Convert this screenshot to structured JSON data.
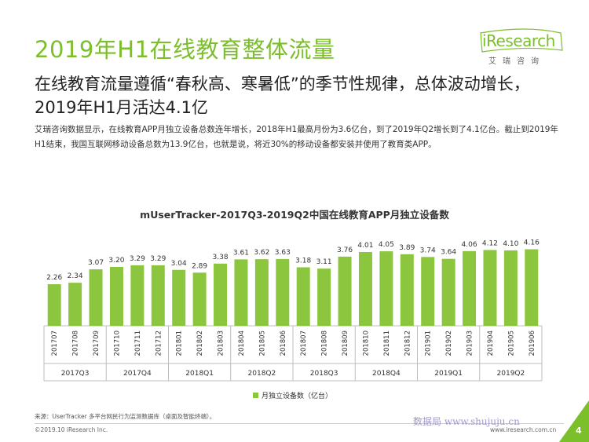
{
  "page": {
    "title": "2019年H1在线教育整体流量",
    "subtitle": "在线教育流量遵循“春秋高、寒暑低”的季节性规律，总体波动增长，2019年H1月活达4.1亿",
    "description": "艾瑞咨询数据显示，在线教育APP月独立设备总数连年增长，2018年H1最高月份为3.6亿台，到了2019年Q2增长到了4.1亿台。截止到2019年H1结束，我国互联网移动设备总数为13.9亿台，也就是说，将近30%的移动设备都安装并使用了教育类APP。",
    "source": "来源：UserTracker 多平台网民行为监测数据库（桌面及智能终端）。",
    "copyright": "©2019.10 iResearch Inc.",
    "website": "www.iresearch.com.cn",
    "page_number": "4",
    "watermark": "数据局 www.shujuju.cn"
  },
  "logo": {
    "name": "iResearch",
    "subtitle": "艾瑞咨询"
  },
  "colors": {
    "brand_green": "#7bbf2a",
    "bar_green": "#8cc63f"
  },
  "chart_data": {
    "type": "bar",
    "title": "mUserTracker-2017Q3-2019Q2中国在线教育APP月独立设备数",
    "categories": [
      "201707",
      "201708",
      "201709",
      "201710",
      "201711",
      "201712",
      "201801",
      "201802",
      "201803",
      "201804",
      "201805",
      "201806",
      "201807",
      "201808",
      "201809",
      "201810",
      "201811",
      "201812",
      "201901",
      "201902",
      "201903",
      "201904",
      "201905",
      "201906"
    ],
    "quarters": [
      {
        "label": "2017Q3",
        "months": 3
      },
      {
        "label": "2017Q4",
        "months": 3
      },
      {
        "label": "2018Q1",
        "months": 3
      },
      {
        "label": "2018Q2",
        "months": 3
      },
      {
        "label": "2018Q3",
        "months": 3
      },
      {
        "label": "2018Q4",
        "months": 3
      },
      {
        "label": "2019Q1",
        "months": 3
      },
      {
        "label": "2019Q2",
        "months": 3
      }
    ],
    "series": [
      {
        "name": "月独立设备数（亿台）",
        "values": [
          2.26,
          2.34,
          3.07,
          3.2,
          3.29,
          3.29,
          3.04,
          2.89,
          3.38,
          3.61,
          3.62,
          3.63,
          3.18,
          3.11,
          3.76,
          4.01,
          4.05,
          3.89,
          3.74,
          3.64,
          4.06,
          4.12,
          4.1,
          4.16
        ],
        "labels": [
          "2.26",
          "2.34",
          "3.07",
          "3.20",
          "3.29",
          "3.29",
          "3.04",
          "2.89",
          "3.38",
          "3.61",
          "3.62",
          "3.63",
          "3.18",
          "3.11",
          "3.76",
          "4.01",
          "4.05",
          "3.89",
          "3.74",
          "3.64",
          "4.06",
          "4.12",
          "4.10",
          "4.16"
        ]
      }
    ],
    "legend": "bottom-center",
    "ylim": [
      0,
      4.5
    ],
    "grid": false
  }
}
